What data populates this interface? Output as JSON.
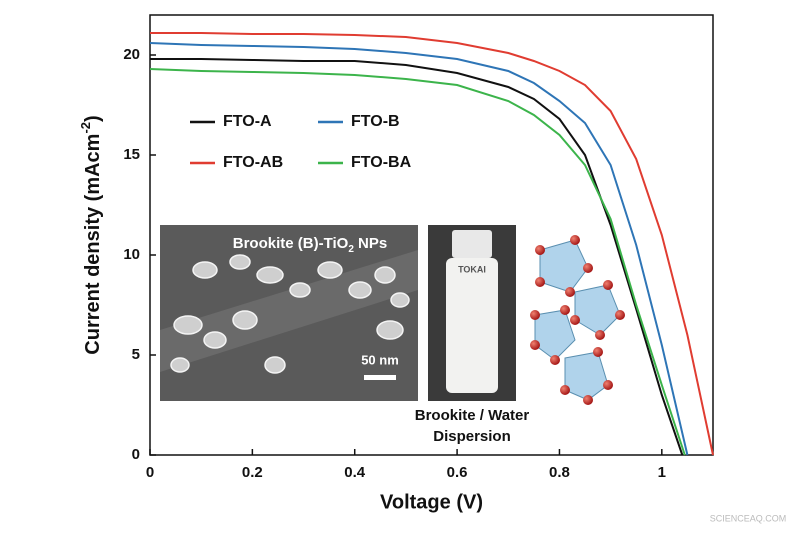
{
  "chart_data": {
    "type": "line",
    "x_label": "Voltage (V)",
    "y_label": {
      "text": "Current density (mAcm",
      "sup": "-2",
      "close": ")"
    },
    "xlim": [
      0,
      1.1
    ],
    "ylim": [
      0,
      22
    ],
    "xticks": [
      0,
      0.2,
      0.4,
      0.6,
      0.8,
      1
    ],
    "yticks": [
      0,
      5,
      10,
      15,
      20
    ],
    "legend": "upper left",
    "series": [
      {
        "name": "FTO-A",
        "color": "#111111",
        "x": [
          0,
          0.1,
          0.2,
          0.3,
          0.4,
          0.5,
          0.6,
          0.7,
          0.75,
          0.8,
          0.85,
          0.9,
          0.95,
          1.0,
          1.04
        ],
        "values": [
          19.8,
          19.8,
          19.75,
          19.7,
          19.7,
          19.5,
          19.1,
          18.4,
          17.8,
          16.8,
          15.0,
          11.5,
          7.3,
          3.0,
          0
        ]
      },
      {
        "name": "FTO-B",
        "color": "#2e75b6",
        "x": [
          0,
          0.1,
          0.2,
          0.3,
          0.4,
          0.5,
          0.6,
          0.7,
          0.75,
          0.8,
          0.85,
          0.9,
          0.95,
          1.0,
          1.05
        ],
        "values": [
          20.6,
          20.5,
          20.45,
          20.4,
          20.3,
          20.1,
          19.8,
          19.2,
          18.6,
          17.7,
          16.6,
          14.5,
          10.5,
          5.5,
          0
        ]
      },
      {
        "name": "FTO-AB",
        "color": "#e03c31",
        "x": [
          0,
          0.1,
          0.2,
          0.3,
          0.4,
          0.5,
          0.6,
          0.7,
          0.75,
          0.8,
          0.85,
          0.9,
          0.95,
          1.0,
          1.05,
          1.1
        ],
        "values": [
          21.1,
          21.1,
          21.05,
          21.05,
          21.0,
          20.9,
          20.6,
          20.1,
          19.7,
          19.2,
          18.5,
          17.2,
          14.8,
          11.0,
          6.0,
          0
        ]
      },
      {
        "name": "FTO-BA",
        "color": "#3cb44b",
        "x": [
          0,
          0.1,
          0.2,
          0.3,
          0.4,
          0.5,
          0.6,
          0.7,
          0.75,
          0.8,
          0.85,
          0.9,
          0.95,
          1.0,
          1.045
        ],
        "values": [
          19.3,
          19.2,
          19.15,
          19.1,
          19.0,
          18.8,
          18.5,
          17.7,
          17.0,
          16.0,
          14.5,
          11.8,
          7.5,
          3.5,
          0
        ]
      }
    ]
  },
  "insets": {
    "sem_title": {
      "text": "Brookite (B)-TiO",
      "sub": "2",
      "tail": " NPs"
    },
    "scale_bar": "50 nm",
    "bottle_brand": "TOKAI",
    "caption": [
      "Brookite / Water",
      "Dispersion"
    ]
  },
  "watermark": "SCIENCEAQ.COM"
}
